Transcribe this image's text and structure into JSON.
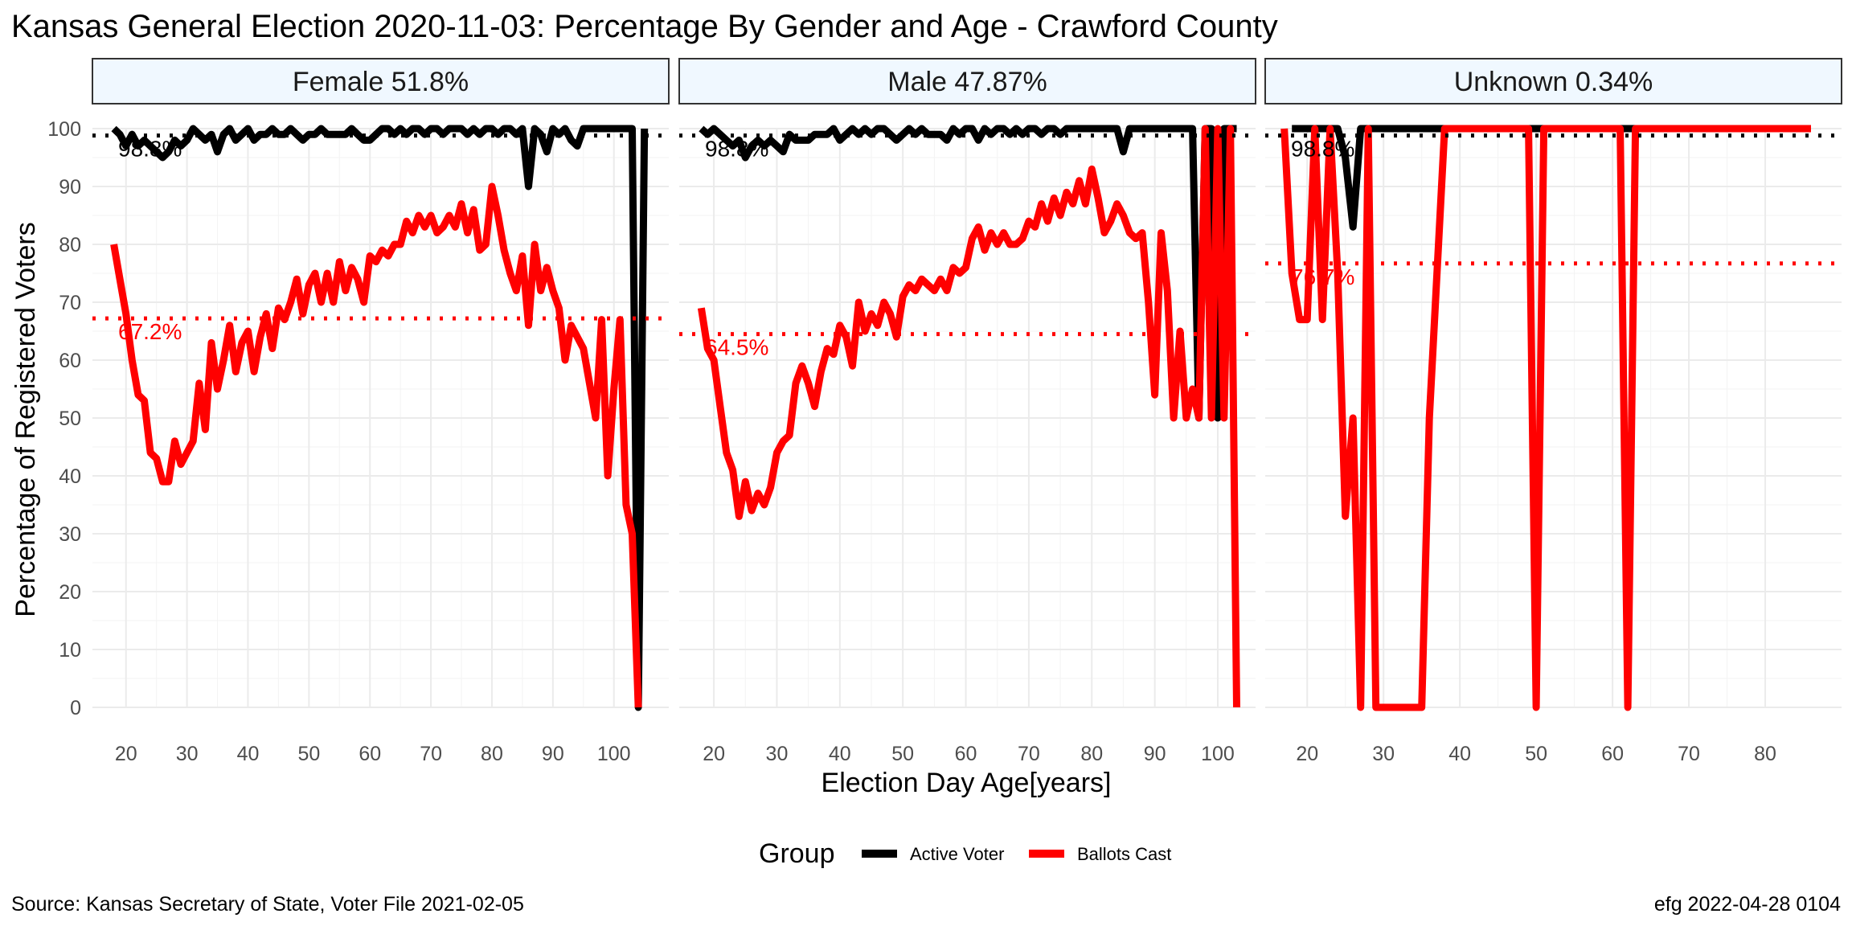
{
  "title": "Kansas General Election 2020-11-03:  Percentage By Gender and Age - Crawford County",
  "ylabel": "Percentage of Registered Voters",
  "xlabel": "Election Day Age[years]",
  "caption_left": "Source:  Kansas Secretary of State, Voter File  2021-02-05",
  "caption_right": "efg 2022-04-28 0104",
  "legend": {
    "title": "Group",
    "items": [
      {
        "label": "Active Voter",
        "color": "#000000"
      },
      {
        "label": "Ballots Cast",
        "color": "#ff0000"
      }
    ]
  },
  "colors": {
    "active": "#000000",
    "ballots": "#ff0000",
    "strip_fill": "#f0f8ff",
    "grid": "#ebebeb"
  },
  "chart_data": {
    "type": "line",
    "facet_by": "gender",
    "ylim": [
      0,
      100
    ],
    "y_ticks": [
      0,
      10,
      20,
      30,
      40,
      50,
      60,
      70,
      80,
      90,
      100
    ],
    "panels": [
      {
        "strip": "Female 51.8%",
        "xlim": [
          14.5,
          109
        ],
        "x_ticks": [
          20,
          30,
          40,
          50,
          60,
          70,
          80,
          90,
          100
        ],
        "ref_lines": [
          {
            "series": "Active Voter",
            "value": 98.8,
            "label": "98.8%"
          },
          {
            "series": "Ballots Cast",
            "value": 67.2,
            "label": "67.2%"
          }
        ],
        "series": [
          {
            "name": "Active Voter",
            "x": [
              18,
              19,
              20,
              21,
              22,
              23,
              24,
              25,
              26,
              27,
              28,
              29,
              30,
              31,
              32,
              33,
              34,
              35,
              36,
              37,
              38,
              39,
              40,
              41,
              42,
              43,
              44,
              45,
              46,
              47,
              48,
              49,
              50,
              51,
              52,
              53,
              54,
              55,
              56,
              57,
              58,
              59,
              60,
              61,
              62,
              63,
              64,
              65,
              66,
              67,
              68,
              69,
              70,
              71,
              72,
              73,
              74,
              75,
              76,
              77,
              78,
              79,
              80,
              81,
              82,
              83,
              84,
              85,
              86,
              87,
              88,
              89,
              90,
              91,
              92,
              93,
              94,
              95,
              96,
              97,
              98,
              99,
              100,
              101,
              102,
              103,
              104,
              105
            ],
            "y": [
              100,
              99,
              97,
              99,
              97,
              98,
              97,
              96,
              95,
              96,
              98,
              97,
              98,
              100,
              99,
              98,
              99,
              96,
              99,
              100,
              98,
              99,
              100,
              98,
              99,
              99,
              100,
              99,
              99,
              100,
              99,
              98,
              99,
              99,
              100,
              99,
              99,
              99,
              99,
              100,
              99,
              98,
              98,
              99,
              100,
              100,
              99,
              100,
              99,
              100,
              100,
              99,
              100,
              100,
              99,
              100,
              100,
              100,
              99,
              100,
              99,
              100,
              100,
              99,
              100,
              100,
              99,
              100,
              90,
              100,
              99,
              96,
              100,
              99,
              100,
              98,
              97,
              100,
              100,
              100,
              100,
              100,
              100,
              100,
              100,
              100,
              0,
              100
            ]
          },
          {
            "name": "Ballots Cast",
            "x": [
              18,
              19,
              20,
              21,
              22,
              23,
              24,
              25,
              26,
              27,
              28,
              29,
              30,
              31,
              32,
              33,
              34,
              35,
              36,
              37,
              38,
              39,
              40,
              41,
              42,
              43,
              44,
              45,
              46,
              47,
              48,
              49,
              50,
              51,
              52,
              53,
              54,
              55,
              56,
              57,
              58,
              59,
              60,
              61,
              62,
              63,
              64,
              65,
              66,
              67,
              68,
              69,
              70,
              71,
              72,
              73,
              74,
              75,
              76,
              77,
              78,
              79,
              80,
              81,
              82,
              83,
              84,
              85,
              86,
              87,
              88,
              89,
              90,
              91,
              92,
              93,
              94,
              95,
              96,
              97,
              98,
              99,
              100,
              101,
              102,
              103,
              104
            ],
            "y": [
              80,
              74,
              68,
              60,
              54,
              53,
              44,
              43,
              39,
              39,
              46,
              42,
              44,
              46,
              56,
              48,
              63,
              55,
              60,
              66,
              58,
              63,
              65,
              58,
              64,
              68,
              62,
              69,
              67,
              70,
              74,
              68,
              73,
              75,
              70,
              75,
              70,
              77,
              72,
              76,
              74,
              70,
              78,
              77,
              79,
              78,
              80,
              80,
              84,
              82,
              85,
              83,
              85,
              82,
              83,
              85,
              83,
              87,
              82,
              86,
              79,
              80,
              90,
              85,
              79,
              75,
              72,
              78,
              66,
              80,
              72,
              76,
              72,
              69,
              60,
              66,
              64,
              62,
              56,
              50,
              67,
              40,
              55,
              67,
              35,
              30,
              0
            ]
          }
        ]
      },
      {
        "strip": "Male 47.87%",
        "xlim": [
          14.5,
          106
        ],
        "x_ticks": [
          20,
          30,
          40,
          50,
          60,
          70,
          80,
          90,
          100
        ],
        "ref_lines": [
          {
            "series": "Active Voter",
            "value": 98.8,
            "label": "98.8%"
          },
          {
            "series": "Ballots Cast",
            "value": 64.5,
            "label": "64.5%"
          }
        ],
        "series": [
          {
            "name": "Active Voter",
            "x": [
              18,
              19,
              20,
              21,
              22,
              23,
              24,
              25,
              26,
              27,
              28,
              29,
              30,
              31,
              32,
              33,
              34,
              35,
              36,
              37,
              38,
              39,
              40,
              41,
              42,
              43,
              44,
              45,
              46,
              47,
              48,
              49,
              50,
              51,
              52,
              53,
              54,
              55,
              56,
              57,
              58,
              59,
              60,
              61,
              62,
              63,
              64,
              65,
              66,
              67,
              68,
              69,
              70,
              71,
              72,
              73,
              74,
              75,
              76,
              77,
              78,
              79,
              80,
              81,
              82,
              83,
              84,
              85,
              86,
              87,
              88,
              89,
              90,
              91,
              92,
              93,
              94,
              95,
              96,
              97,
              98,
              99,
              100,
              101,
              102,
              103
            ],
            "y": [
              100,
              99,
              100,
              99,
              98,
              97,
              98,
              95,
              97,
              98,
              97,
              98,
              97,
              96,
              99,
              98,
              98,
              98,
              99,
              99,
              99,
              100,
              98,
              99,
              100,
              99,
              100,
              99,
              100,
              100,
              99,
              98,
              99,
              100,
              99,
              100,
              99,
              99,
              99,
              98,
              100,
              99,
              100,
              100,
              98,
              100,
              99,
              100,
              100,
              99,
              100,
              99,
              100,
              100,
              99,
              100,
              100,
              99,
              100,
              100,
              100,
              100,
              100,
              100,
              100,
              100,
              100,
              96,
              100,
              100,
              100,
              100,
              100,
              100,
              100,
              100,
              100,
              100,
              100,
              50,
              100,
              100,
              50,
              100,
              100,
              100
            ]
          },
          {
            "name": "Ballots Cast",
            "x": [
              18,
              19,
              20,
              21,
              22,
              23,
              24,
              25,
              26,
              27,
              28,
              29,
              30,
              31,
              32,
              33,
              34,
              35,
              36,
              37,
              38,
              39,
              40,
              41,
              42,
              43,
              44,
              45,
              46,
              47,
              48,
              49,
              50,
              51,
              52,
              53,
              54,
              55,
              56,
              57,
              58,
              59,
              60,
              61,
              62,
              63,
              64,
              65,
              66,
              67,
              68,
              69,
              70,
              71,
              72,
              73,
              74,
              75,
              76,
              77,
              78,
              79,
              80,
              81,
              82,
              83,
              84,
              85,
              86,
              87,
              88,
              89,
              90,
              91,
              92,
              93,
              94,
              95,
              96,
              97,
              98,
              99,
              100,
              101,
              102,
              103
            ],
            "y": [
              69,
              62,
              60,
              52,
              44,
              41,
              33,
              39,
              34,
              37,
              35,
              38,
              44,
              46,
              47,
              56,
              59,
              56,
              52,
              58,
              62,
              61,
              66,
              64,
              59,
              70,
              65,
              68,
              66,
              70,
              68,
              64,
              71,
              73,
              72,
              74,
              73,
              72,
              74,
              72,
              76,
              75,
              76,
              81,
              83,
              79,
              82,
              80,
              82,
              80,
              80,
              81,
              84,
              83,
              87,
              84,
              88,
              85,
              89,
              87,
              91,
              87,
              93,
              88,
              82,
              84,
              87,
              85,
              82,
              81,
              82,
              70,
              54,
              82,
              72,
              50,
              65,
              50,
              55,
              50,
              100,
              50,
              100,
              50,
              100,
              0
            ]
          }
        ]
      },
      {
        "strip": "Unknown 0.34%",
        "xlim": [
          14.5,
          90
        ],
        "x_ticks": [
          20,
          30,
          40,
          50,
          60,
          70,
          80
        ],
        "ref_lines": [
          {
            "series": "Active Voter",
            "value": 98.8,
            "label": "98.8%"
          },
          {
            "series": "Ballots Cast",
            "value": 76.7,
            "label": "76.7%"
          }
        ],
        "series": [
          {
            "name": "Active Voter",
            "x": [
              18,
              19,
              20,
              21,
              22,
              23,
              24,
              25,
              26,
              27,
              28,
              29,
              30,
              35,
              40,
              50,
              60,
              62,
              63,
              70,
              80,
              86
            ],
            "y": [
              100,
              100,
              100,
              100,
              100,
              100,
              100,
              95,
              83,
              100,
              100,
              100,
              100,
              100,
              100,
              100,
              100,
              100,
              100,
              100,
              100,
              100
            ]
          },
          {
            "name": "Ballots Cast",
            "x": [
              17,
              18,
              19,
              20,
              21,
              22,
              23,
              24,
              25,
              26,
              27,
              28,
              29,
              30,
              31,
              32,
              33,
              34,
              35,
              36,
              37,
              38,
              39,
              49,
              50,
              51,
              61,
              62,
              63,
              64,
              70,
              80,
              86
            ],
            "y": [
              100,
              75,
              67,
              67,
              100,
              67,
              100,
              75,
              33,
              50,
              0,
              100,
              0,
              0,
              0,
              0,
              0,
              0,
              0,
              50,
              75,
              100,
              100,
              100,
              0,
              100,
              100,
              0,
              100,
              100,
              100,
              100,
              100
            ]
          }
        ]
      }
    ]
  }
}
